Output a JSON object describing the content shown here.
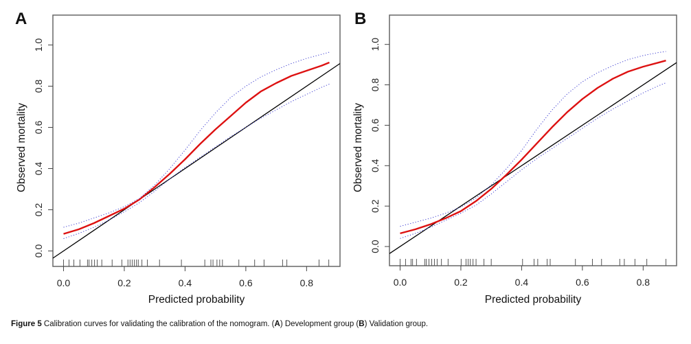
{
  "figure": {
    "caption_label": "Figure 5",
    "caption_text": " Calibration curves for validating the calibration of the nomogram. (",
    "caption_a": "A",
    "caption_mid": ") Development group (",
    "caption_b": "B",
    "caption_end": ") Validation group."
  },
  "colors": {
    "calibration_curve": "#dd1111",
    "confidence_band": "#3a3ad0",
    "ideal_line": "#000000",
    "frame": "#666666"
  },
  "chart_data": [
    {
      "panel": "A",
      "title": "Development group",
      "type": "line",
      "xlabel": "Predicted probability",
      "ylabel": "Observed mortality",
      "xlim": [
        -0.035,
        0.91
      ],
      "ylim": [
        -0.075,
        1.145
      ],
      "xticks": [
        "0.0",
        "0.2",
        "0.4",
        "0.6",
        "0.8"
      ],
      "yticks": [
        "0.0",
        "0.2",
        "0.4",
        "0.6",
        "0.8",
        "1.0"
      ],
      "grid": false,
      "series": [
        {
          "name": "ideal",
          "style": "solid-black",
          "x": [
            -0.035,
            0.91
          ],
          "y": [
            -0.035,
            0.91
          ]
        },
        {
          "name": "calibration",
          "style": "solid-red",
          "x": [
            0.0,
            0.05,
            0.1,
            0.15,
            0.2,
            0.25,
            0.3,
            0.35,
            0.4,
            0.45,
            0.5,
            0.55,
            0.6,
            0.65,
            0.7,
            0.75,
            0.8,
            0.85,
            0.875
          ],
          "y": [
            0.083,
            0.105,
            0.135,
            0.17,
            0.205,
            0.25,
            0.31,
            0.375,
            0.445,
            0.52,
            0.59,
            0.655,
            0.72,
            0.775,
            0.815,
            0.85,
            0.875,
            0.9,
            0.915
          ]
        },
        {
          "name": "upper-ci",
          "style": "dotted-blue",
          "x": [
            0.0,
            0.05,
            0.1,
            0.15,
            0.2,
            0.25,
            0.3,
            0.35,
            0.4,
            0.45,
            0.5,
            0.55,
            0.6,
            0.65,
            0.7,
            0.75,
            0.8,
            0.85,
            0.875
          ],
          "y": [
            0.115,
            0.135,
            0.16,
            0.185,
            0.215,
            0.255,
            0.32,
            0.4,
            0.49,
            0.585,
            0.67,
            0.745,
            0.8,
            0.845,
            0.88,
            0.91,
            0.935,
            0.955,
            0.965
          ]
        },
        {
          "name": "lower-ci",
          "style": "dotted-blue",
          "x": [
            0.0,
            0.05,
            0.1,
            0.15,
            0.2,
            0.25,
            0.3,
            0.35,
            0.4,
            0.45,
            0.5,
            0.55,
            0.6,
            0.65,
            0.7,
            0.75,
            0.8,
            0.85,
            0.875
          ],
          "y": [
            0.06,
            0.085,
            0.115,
            0.15,
            0.19,
            0.235,
            0.29,
            0.35,
            0.405,
            0.455,
            0.505,
            0.555,
            0.6,
            0.645,
            0.685,
            0.725,
            0.76,
            0.795,
            0.81
          ]
        }
      ],
      "rug": [
        0.0,
        0.018,
        0.034,
        0.054,
        0.079,
        0.084,
        0.093,
        0.102,
        0.111,
        0.126,
        0.16,
        0.192,
        0.212,
        0.219,
        0.226,
        0.233,
        0.24,
        0.246,
        0.258,
        0.276,
        0.316,
        0.388,
        0.465,
        0.485,
        0.492,
        0.505,
        0.514,
        0.523,
        0.577,
        0.629,
        0.66,
        0.721,
        0.735,
        0.841,
        0.873
      ]
    },
    {
      "panel": "B",
      "title": "Validation group",
      "type": "line",
      "xlabel": "Predicted probability",
      "ylabel": "Observed mortality",
      "xlim": [
        -0.035,
        0.91
      ],
      "ylim": [
        -0.095,
        1.145
      ],
      "xticks": [
        "0.0",
        "0.2",
        "0.4",
        "0.6",
        "0.8"
      ],
      "yticks": [
        "0.0",
        "0.2",
        "0.4",
        "0.6",
        "0.8",
        "1.0"
      ],
      "grid": false,
      "series": [
        {
          "name": "ideal",
          "style": "solid-black",
          "x": [
            -0.035,
            0.91
          ],
          "y": [
            -0.035,
            0.91
          ]
        },
        {
          "name": "calibration",
          "style": "solid-red",
          "x": [
            0.0,
            0.05,
            0.1,
            0.15,
            0.2,
            0.25,
            0.3,
            0.35,
            0.4,
            0.45,
            0.5,
            0.55,
            0.6,
            0.65,
            0.7,
            0.75,
            0.8,
            0.85,
            0.875
          ],
          "y": [
            0.065,
            0.085,
            0.11,
            0.14,
            0.175,
            0.225,
            0.285,
            0.355,
            0.43,
            0.51,
            0.59,
            0.665,
            0.73,
            0.785,
            0.83,
            0.865,
            0.89,
            0.91,
            0.92
          ]
        },
        {
          "name": "upper-ci",
          "style": "dotted-blue",
          "x": [
            0.0,
            0.05,
            0.1,
            0.15,
            0.2,
            0.25,
            0.3,
            0.35,
            0.4,
            0.45,
            0.5,
            0.55,
            0.6,
            0.65,
            0.7,
            0.75,
            0.8,
            0.85,
            0.875
          ],
          "y": [
            0.1,
            0.12,
            0.14,
            0.165,
            0.195,
            0.24,
            0.305,
            0.385,
            0.475,
            0.58,
            0.675,
            0.755,
            0.815,
            0.86,
            0.895,
            0.925,
            0.945,
            0.96,
            0.965
          ]
        },
        {
          "name": "lower-ci",
          "style": "dotted-blue",
          "x": [
            0.0,
            0.05,
            0.1,
            0.15,
            0.2,
            0.25,
            0.3,
            0.35,
            0.4,
            0.45,
            0.5,
            0.55,
            0.6,
            0.65,
            0.7,
            0.75,
            0.8,
            0.85,
            0.875
          ],
          "y": [
            0.04,
            0.065,
            0.095,
            0.13,
            0.165,
            0.205,
            0.26,
            0.32,
            0.38,
            0.435,
            0.485,
            0.535,
            0.585,
            0.635,
            0.68,
            0.72,
            0.76,
            0.795,
            0.81
          ]
        }
      ],
      "rug": [
        0.0,
        0.018,
        0.036,
        0.041,
        0.054,
        0.081,
        0.086,
        0.095,
        0.104,
        0.113,
        0.122,
        0.136,
        0.158,
        0.201,
        0.217,
        0.224,
        0.231,
        0.24,
        0.25,
        0.276,
        0.3,
        0.403,
        0.441,
        0.453,
        0.484,
        0.494,
        0.577,
        0.633,
        0.663,
        0.723,
        0.738,
        0.773,
        0.812,
        0.875
      ]
    }
  ]
}
